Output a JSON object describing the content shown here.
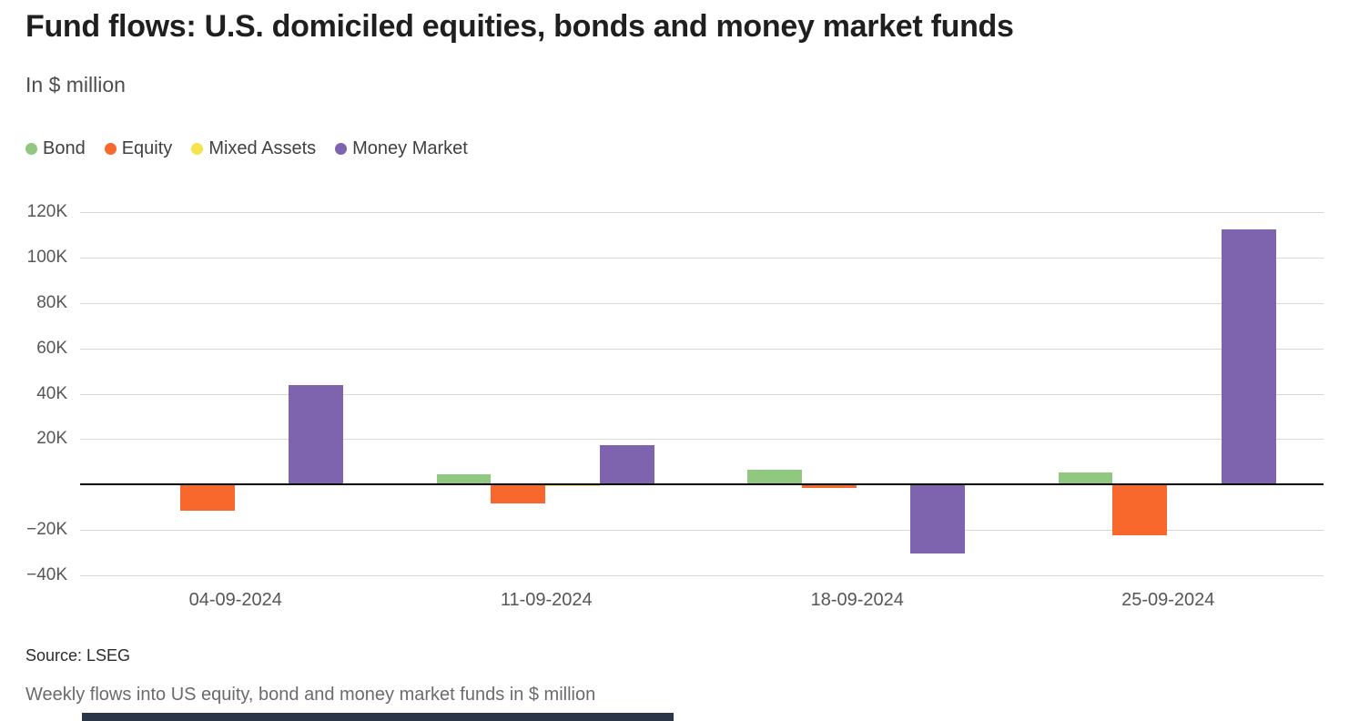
{
  "header": {
    "title": "Fund flows: U.S. domiciled equities, bonds and money market funds",
    "subtitle": "In $ million"
  },
  "legend": [
    {
      "label": "Bond",
      "color": "#8fc87e"
    },
    {
      "label": "Equity",
      "color": "#f8682c"
    },
    {
      "label": "Mixed Assets",
      "color": "#f6e24a"
    },
    {
      "label": "Money Market",
      "color": "#7e63af"
    }
  ],
  "chart_data": {
    "type": "bar",
    "title": "Fund flows: U.S. domiciled equities, bonds and money market funds",
    "subtitle": "In $ million",
    "unit": "$ million",
    "categories": [
      "04-09-2024",
      "11-09-2024",
      "18-09-2024",
      "25-09-2024"
    ],
    "series": [
      {
        "name": "Bond",
        "color": "#8fc87e",
        "values": [
          200,
          4400,
          6500,
          5500
        ]
      },
      {
        "name": "Equity",
        "color": "#f8682c",
        "values": [
          -11600,
          -8300,
          -1500,
          -22500
        ]
      },
      {
        "name": "Mixed Assets",
        "color": "#f6e24a",
        "values": [
          -300,
          -600,
          -500,
          -400
        ]
      },
      {
        "name": "Money Market",
        "color": "#7e63af",
        "values": [
          44000,
          17500,
          -30400,
          112500
        ]
      }
    ],
    "ylim": [
      -40000,
      120000
    ],
    "ytick_values": [
      120000,
      100000,
      80000,
      60000,
      40000,
      20000,
      0,
      -20000,
      -40000
    ],
    "ytick_labels": [
      "120K",
      "100K",
      "80K",
      "60K",
      "40K",
      "20K",
      "",
      "−20K",
      "−40K"
    ],
    "grid": true,
    "zero_line": true,
    "legend_position": "top-left"
  },
  "footer": {
    "source": "Source: LSEG",
    "description": "Weekly flows into US equity, bond and money market funds in $ million"
  },
  "colors": {
    "bond": "#8fc87e",
    "equity": "#f8682c",
    "mixed_assets": "#f6e24a",
    "money_market": "#7e63af",
    "gridline": "#d9d9d9",
    "zero_line": "#000000",
    "brand_bar": "#2b3648"
  }
}
